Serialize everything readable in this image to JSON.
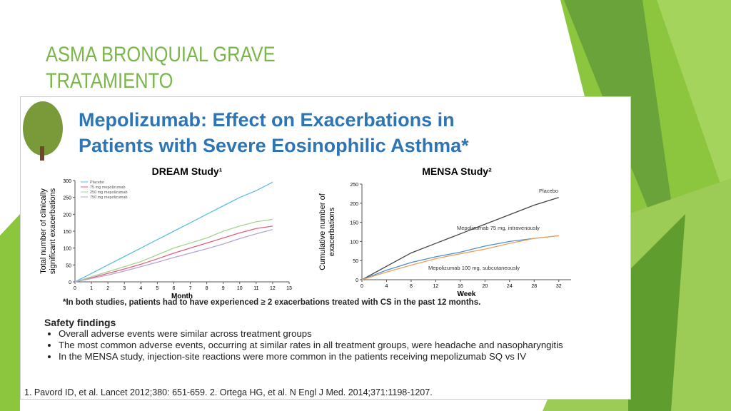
{
  "slide": {
    "title_lines": [
      "ASMA BRONQUIAL GRAVE",
      "TRATAMIENTO"
    ]
  },
  "figure": {
    "heading_lines": [
      "Mepolizumab: Effect on Exacerbations in",
      "Patients with Severe Eosinophilic Asthma*"
    ],
    "footnote": "*In both studies, patients had to have experienced ≥ 2 exacerbations treated with CS in the past 12 months.",
    "safety_heading": "Safety findings",
    "safety_bullets": [
      "Overall adverse events were similar across treatment groups",
      "The most common adverse events, occurring at similar rates in all treatment groups, were headache and nasopharyngitis",
      "In the MENSA study, injection-site reactions were more common in the patients receiving mepolizumab SQ vs IV"
    ],
    "references": "1. Pavord ID, et al. Lancet 2012;380: 651-659.  2. Ortega HG, et al. N Engl J Med. 2014;371:1198-1207."
  },
  "chart_data": [
    {
      "type": "line",
      "title": "DREAM Study¹",
      "x_label": "Month",
      "y_label": [
        "Total number of clinically",
        "significant exacerbations"
      ],
      "x": [
        0,
        1,
        2,
        3,
        4,
        5,
        6,
        7,
        8,
        9,
        10,
        11,
        12
      ],
      "series": [
        {
          "name": "Placebo",
          "color": "#5bbfe0",
          "values": [
            0,
            25,
            50,
            75,
            100,
            125,
            150,
            175,
            200,
            225,
            250,
            270,
            295
          ]
        },
        {
          "name": "75 mg mepolizumab",
          "color": "#e0607e",
          "values": [
            0,
            12,
            25,
            38,
            52,
            68,
            85,
            100,
            115,
            130,
            145,
            158,
            165
          ]
        },
        {
          "name": "250 mg mepolizumab",
          "color": "#a6d48c",
          "values": [
            0,
            15,
            30,
            45,
            60,
            80,
            100,
            115,
            130,
            150,
            165,
            178,
            185
          ]
        },
        {
          "name": "750 mg mepolizumab",
          "color": "#b7a3d6",
          "values": [
            0,
            10,
            20,
            32,
            45,
            58,
            72,
            85,
            98,
            112,
            128,
            142,
            155
          ]
        }
      ],
      "xlim": [
        0,
        13
      ],
      "xticks": [
        0,
        1,
        2,
        3,
        4,
        5,
        6,
        7,
        8,
        9,
        10,
        11,
        12,
        13
      ],
      "ylim": [
        0,
        300
      ],
      "yticks": [
        0,
        50,
        100,
        150,
        200,
        250,
        300
      ],
      "legend": "upper left"
    },
    {
      "type": "line",
      "title": "MENSA Study²",
      "x_label": "Week",
      "y_label": [
        "Cumulative number of",
        "exacerbations"
      ],
      "x": [
        0,
        4,
        8,
        12,
        16,
        20,
        24,
        28,
        32
      ],
      "series": [
        {
          "name": "Placebo",
          "color": "#444444",
          "values": [
            0,
            35,
            70,
            95,
            120,
            145,
            170,
            195,
            215
          ]
        },
        {
          "name": "Mepolizumab 75 mg, intravenously",
          "color": "#4a90d9",
          "values": [
            0,
            25,
            45,
            60,
            72,
            88,
            100,
            108,
            115
          ]
        },
        {
          "name": "Mepolizumab 100 mg, subcutaneously",
          "color": "#f0a050",
          "values": [
            0,
            20,
            38,
            55,
            68,
            80,
            95,
            108,
            115
          ]
        }
      ],
      "xlim": [
        0,
        34
      ],
      "xticks": [
        0,
        4,
        8,
        12,
        16,
        20,
        24,
        28,
        32
      ],
      "ylim": [
        0,
        250
      ],
      "yticks": [
        0,
        50,
        100,
        150,
        200,
        250
      ],
      "legend": "inline"
    }
  ]
}
